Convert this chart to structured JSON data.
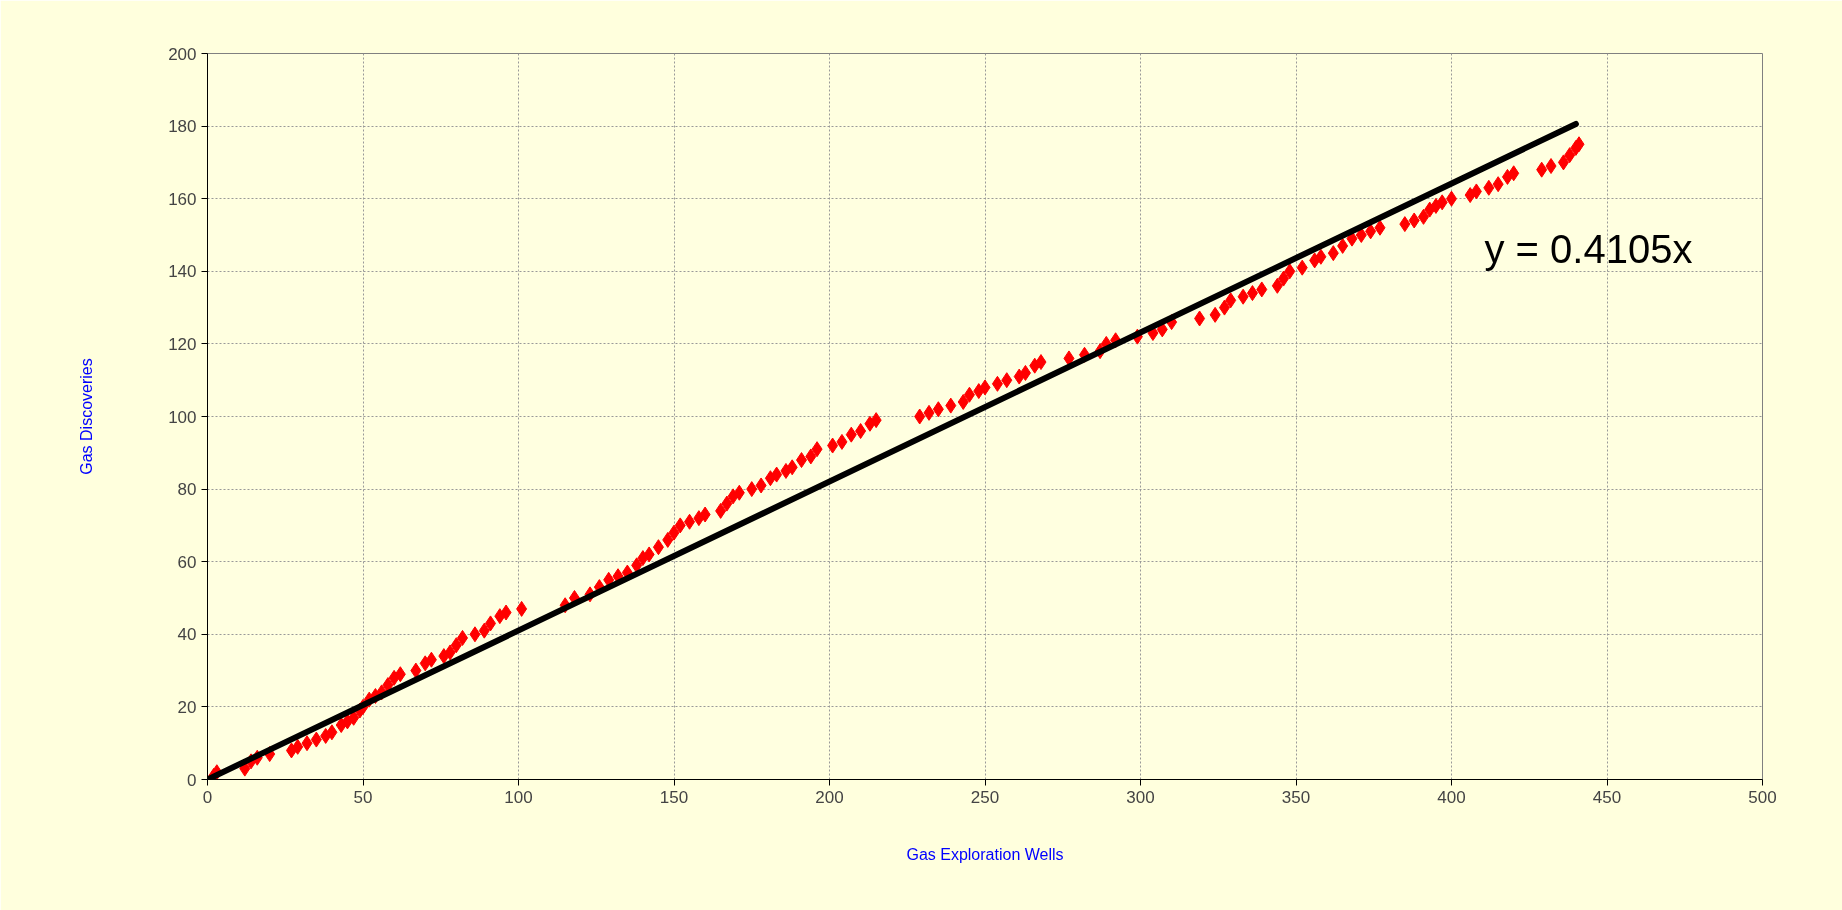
{
  "chart_data": {
    "type": "scatter",
    "xlabel": "Gas Exploration Wells",
    "ylabel": "Gas Discoveries",
    "xlim": [
      0,
      500
    ],
    "ylim": [
      0,
      200
    ],
    "xticks": [
      0,
      50,
      100,
      150,
      200,
      250,
      300,
      350,
      400,
      450,
      500
    ],
    "yticks": [
      0,
      20,
      40,
      60,
      80,
      100,
      120,
      140,
      160,
      180,
      200
    ],
    "grid": true,
    "annotations": [
      "y = 0.4105x"
    ],
    "series": [
      {
        "marker": "diamond",
        "color": "#ff0000",
        "x": [
          2,
          3,
          12,
          14,
          16,
          20,
          27,
          29,
          32,
          35,
          38,
          40,
          43,
          45,
          47,
          49,
          50,
          52,
          54,
          56,
          58,
          60,
          62,
          67,
          70,
          72,
          76,
          78,
          80,
          82,
          86,
          89,
          91,
          94,
          96,
          101,
          115,
          118,
          123,
          126,
          129,
          132,
          135,
          138,
          140,
          142,
          145,
          148,
          150,
          152,
          155,
          158,
          160,
          165,
          167,
          169,
          171,
          175,
          178,
          181,
          183,
          186,
          188,
          191,
          194,
          196,
          201,
          204,
          207,
          210,
          213,
          215,
          229,
          232,
          235,
          239,
          243,
          245,
          248,
          250,
          254,
          257,
          261,
          263,
          266,
          268,
          277,
          282,
          287,
          289,
          292,
          299,
          304,
          307,
          310,
          319,
          324,
          327,
          329,
          333,
          336,
          339,
          344,
          346,
          348,
          352,
          356,
          358,
          362,
          365,
          368,
          371,
          374,
          377,
          385,
          388,
          391,
          393,
          395,
          397,
          400,
          406,
          408,
          412,
          415,
          418,
          420,
          429,
          432,
          436,
          438,
          440,
          441
        ],
        "values": [
          1,
          2,
          3,
          5,
          6,
          7,
          8,
          9,
          10,
          11,
          12,
          13,
          15,
          16,
          17,
          19,
          20,
          22,
          23,
          24,
          26,
          28,
          29,
          30,
          32,
          33,
          34,
          35,
          37,
          39,
          40,
          41,
          43,
          45,
          46,
          47,
          48,
          50,
          51,
          53,
          55,
          56,
          57,
          59,
          61,
          62,
          64,
          66,
          68,
          70,
          71,
          72,
          73,
          74,
          76,
          78,
          79,
          80,
          81,
          83,
          84,
          85,
          86,
          88,
          89,
          91,
          92,
          93,
          95,
          96,
          98,
          99,
          100,
          101,
          102,
          103,
          104,
          106,
          107,
          108,
          109,
          110,
          111,
          112,
          114,
          115,
          116,
          117,
          118,
          120,
          121,
          122,
          123,
          124,
          126,
          127,
          128,
          130,
          132,
          133,
          134,
          135,
          136,
          138,
          140,
          141,
          143,
          144,
          145,
          147,
          149,
          150,
          151,
          152,
          153,
          154,
          155,
          157,
          158,
          159,
          160,
          161,
          162,
          163,
          164,
          166,
          167,
          168,
          169,
          170,
          172,
          174,
          175
        ]
      },
      {
        "type": "line",
        "color": "#000000",
        "x": [
          0,
          440
        ],
        "values": [
          0,
          180.6
        ]
      }
    ]
  }
}
